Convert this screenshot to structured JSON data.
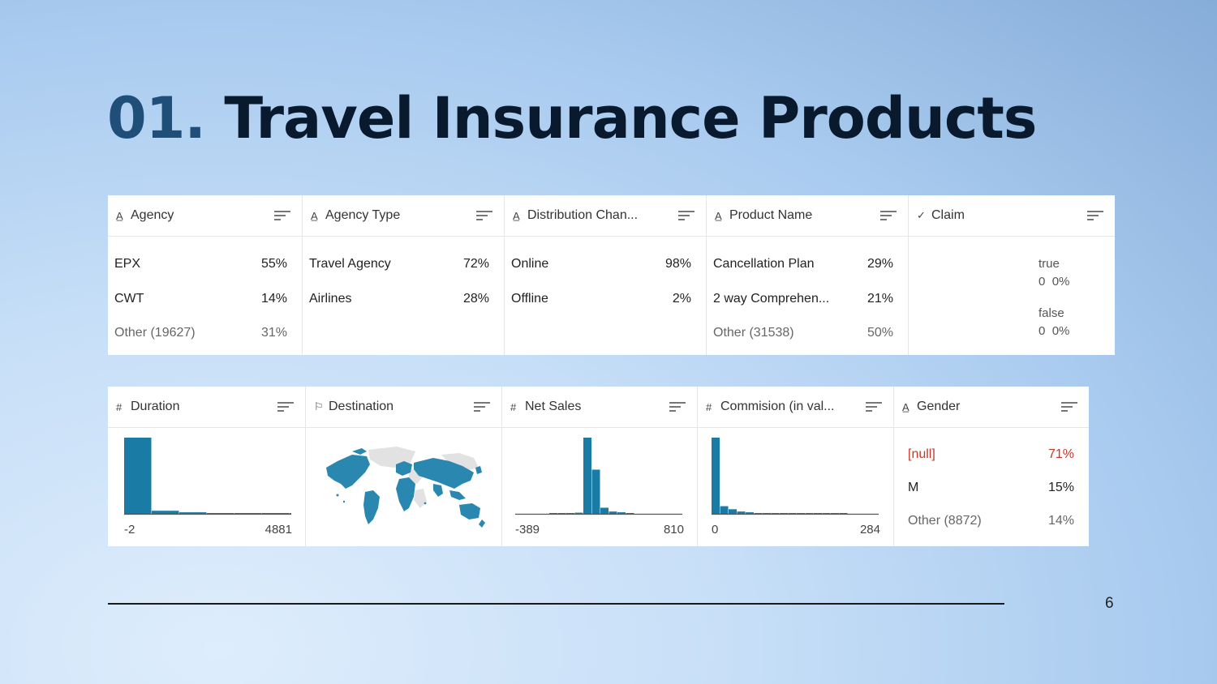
{
  "slide": {
    "title_number": "01.",
    "title_text": "Travel Insurance Products",
    "page_number": "6"
  },
  "table1": {
    "columns": [
      {
        "icon": "text-type-icon",
        "header": "Agency",
        "rows": [
          {
            "label": "EPX",
            "pct": "55%"
          },
          {
            "label": "CWT",
            "pct": "14%"
          },
          {
            "label": "Other (19627)",
            "pct": "31%"
          }
        ]
      },
      {
        "icon": "text-type-icon",
        "header": "Agency Type",
        "rows": [
          {
            "label": "Travel Agency",
            "pct": "72%"
          },
          {
            "label": "Airlines",
            "pct": "28%"
          }
        ]
      },
      {
        "icon": "text-type-icon",
        "header": "Distribution Chan...",
        "rows": [
          {
            "label": "Online",
            "pct": "98%"
          },
          {
            "label": "Offline",
            "pct": "2%"
          }
        ]
      },
      {
        "icon": "text-type-icon",
        "header": "Product Name",
        "rows": [
          {
            "label": "Cancellation Plan",
            "pct": "29%"
          },
          {
            "label": "2 way Comprehen...",
            "pct": "21%"
          },
          {
            "label": "Other (31538)",
            "pct": "50%"
          }
        ]
      },
      {
        "icon": "check-icon",
        "header": "Claim",
        "values": [
          {
            "name": "true",
            "count": "0",
            "pct": "0%"
          },
          {
            "name": "false",
            "count": "0",
            "pct": "0%"
          }
        ]
      }
    ]
  },
  "table2": {
    "columns": [
      {
        "icon": "hash-icon",
        "header": "Duration",
        "axis_min": "-2",
        "axis_max": "4881"
      },
      {
        "icon": "flag-icon",
        "header": "Destination"
      },
      {
        "icon": "hash-icon",
        "header": "Net Sales",
        "axis_min": "-389",
        "axis_max": "810"
      },
      {
        "icon": "hash-icon",
        "header": "Commision (in val...",
        "axis_min": "0",
        "axis_max": "284"
      },
      {
        "icon": "text-type-icon",
        "header": "Gender",
        "rows": [
          {
            "label": "[null]",
            "pct": "71%"
          },
          {
            "label": "M",
            "pct": "15%"
          },
          {
            "label": "Other (8872)",
            "pct": "14%"
          }
        ]
      }
    ]
  },
  "chart_data": [
    {
      "type": "bar",
      "title": "Duration",
      "xlim": [
        -2,
        4881
      ],
      "values": [
        1.0,
        0.04,
        0.02,
        0.01,
        0.005,
        0.003,
        0.002,
        0.001
      ]
    },
    {
      "type": "bar",
      "title": "Net Sales",
      "xlim": [
        -389,
        810
      ],
      "values": [
        0,
        0,
        0,
        0,
        0.005,
        0.01,
        0.01,
        0.015,
        1.0,
        0.58,
        0.08,
        0.03,
        0.02,
        0.01,
        0,
        0
      ]
    },
    {
      "type": "bar",
      "title": "Commision (in value)",
      "xlim": [
        0,
        284
      ],
      "values": [
        1.0,
        0.1,
        0.06,
        0.03,
        0.02,
        0.01,
        0.008,
        0.005,
        0.004,
        0.003,
        0.002,
        0.002,
        0.001,
        0.001,
        0.001,
        0.001
      ]
    }
  ],
  "colors": {
    "bar": "#1a7ba4",
    "map_land": "#2a87b0",
    "map_empty": "#e2e2e2",
    "null_text": "#c0392b"
  }
}
